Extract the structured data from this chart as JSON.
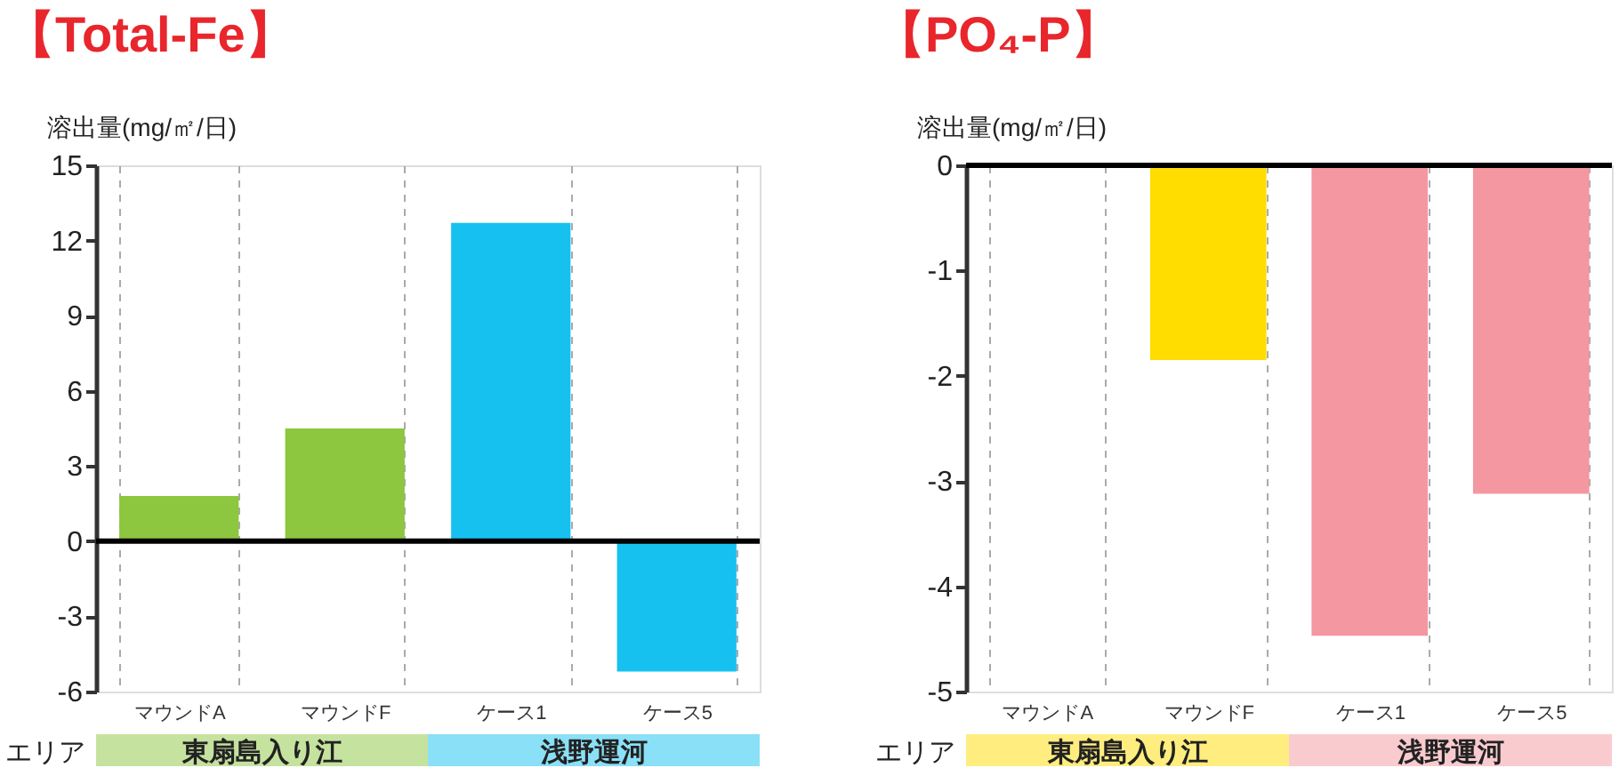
{
  "chart_data": [
    {
      "type": "bar",
      "title": "【Total-Fe】",
      "ylabel": "溶出量(mg/㎡/日)",
      "categories": [
        "マウンドA",
        "マウンドF",
        "ケース1",
        "ケース5"
      ],
      "values": [
        1.8,
        4.5,
        12.7,
        -5.2
      ],
      "colors": [
        "#8dc63f",
        "#8dc63f",
        "#16c1f0",
        "#16c1f0"
      ],
      "ylim": [
        -6,
        15
      ],
      "yticks": [
        -6,
        -3,
        0,
        3,
        6,
        9,
        12,
        15
      ],
      "grid": "x",
      "ref_lines": [
        {
          "axis": "y",
          "value": 0,
          "color": "#000000"
        }
      ],
      "annotations": [
        "エリア",
        "東扇島入り江",
        "浅野運河"
      ]
    },
    {
      "type": "bar",
      "title": "【PO₄-P】",
      "ylabel": "溶出量(mg/㎡/日)",
      "categories": [
        "マウンドA",
        "マウンドF",
        "ケース1",
        "ケース5"
      ],
      "values": [
        null,
        -1.85,
        -4.47,
        -3.12
      ],
      "colors": [
        "#ffdd00",
        "#ffdd00",
        "#f497a0",
        "#f497a0"
      ],
      "ylim": [
        -5,
        0
      ],
      "yticks": [
        -5,
        -4,
        -3,
        -2,
        -1,
        0
      ],
      "grid": "x",
      "ref_lines": [
        {
          "axis": "y",
          "value": 0,
          "color": "#000000"
        }
      ],
      "annotations": [
        "エリア",
        "東扇島入り江",
        "浅野運河"
      ]
    }
  ]
}
